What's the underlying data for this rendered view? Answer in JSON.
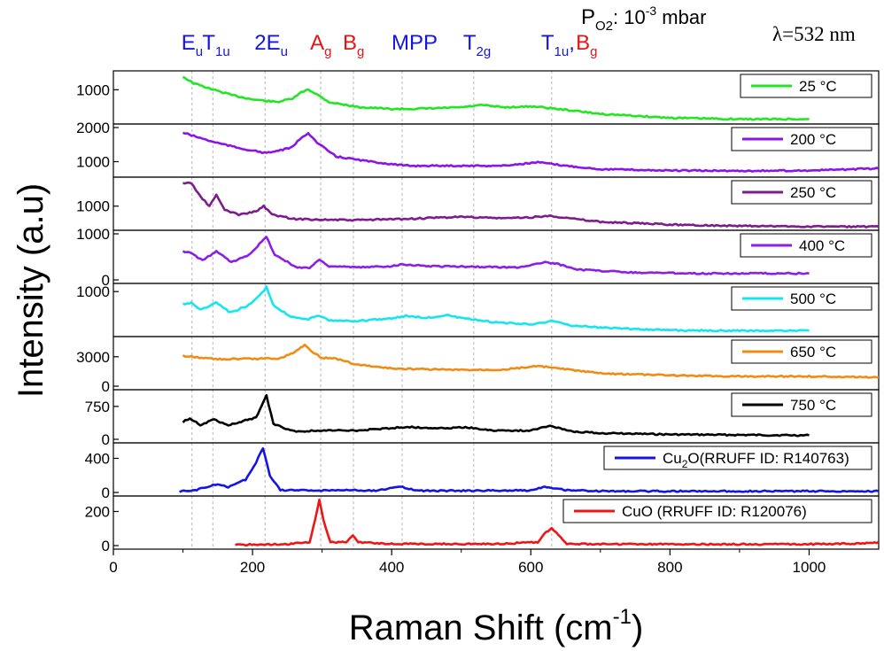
{
  "chart_data": {
    "type": "line",
    "xlabel": "Raman Shift (cm",
    "xlabel_sup": "-1",
    "xlabel_close": ")",
    "ylabel": "Intensity (a.u)",
    "xlim": [
      0,
      1100
    ],
    "x_ticks": [
      0,
      200,
      400,
      600,
      800,
      1000
    ],
    "x_tick_labels": [
      "0",
      "200",
      "400",
      "600",
      "800",
      "1000"
    ],
    "annotation": {
      "p_text": "P",
      "p_sub": "O2",
      "p_rest": ": 10",
      "p_exp": "-3",
      "p_unit": " mbar",
      "lambda_text": "λ=532 nm"
    },
    "peak_labels": [
      {
        "main": "E",
        "sub": "u",
        "x": 113,
        "color": "#1414e6"
      },
      {
        "main": "T",
        "sub": "1u",
        "x": 143,
        "color": "#1414e6"
      },
      {
        "main": "2E",
        "sub": "u",
        "x": 218,
        "color": "#1414e6"
      },
      {
        "main": "A",
        "sub": "g",
        "x": 298,
        "color": "#e61414"
      },
      {
        "main": "B",
        "sub": "g",
        "x": 345,
        "color": "#e61414"
      },
      {
        "main": "MPP",
        "sub": "",
        "x": 415,
        "color": "#1414e6"
      },
      {
        "main": "T",
        "sub": "2g",
        "x": 518,
        "color": "#1414e6"
      },
      {
        "main": "T",
        "sub": "1u",
        "x": 630,
        "color": "#1414e6"
      },
      {
        "main": "B",
        "sub": "g",
        "x": 680,
        "color": "#e61414"
      }
    ],
    "peak_label_separator": ",",
    "guide_lines_x": [
      113,
      143,
      218,
      298,
      345,
      415,
      518,
      630
    ],
    "series": [
      {
        "name": "25 °C",
        "color": "#22e622",
        "y_ticks": [
          1000
        ],
        "y_tick_labels": [
          "1000"
        ],
        "x_start": 100,
        "x_end": 1000,
        "points": [
          [
            100,
            1300
          ],
          [
            115,
            1150
          ],
          [
            140,
            1020
          ],
          [
            170,
            880
          ],
          [
            200,
            780
          ],
          [
            235,
            720
          ],
          [
            258,
            800
          ],
          [
            270,
            940
          ],
          [
            280,
            1010
          ],
          [
            292,
            900
          ],
          [
            310,
            720
          ],
          [
            350,
            610
          ],
          [
            400,
            560
          ],
          [
            450,
            570
          ],
          [
            500,
            600
          ],
          [
            530,
            650
          ],
          [
            560,
            600
          ],
          [
            605,
            620
          ],
          [
            640,
            560
          ],
          [
            700,
            450
          ],
          [
            800,
            360
          ],
          [
            900,
            330
          ],
          [
            1000,
            330
          ]
        ]
      },
      {
        "name": "200 °C",
        "color": "#8c14e6",
        "y_ticks": [
          1000,
          2000
        ],
        "y_tick_labels": [
          "1000",
          "2000"
        ],
        "x_start": 100,
        "x_end": 1100,
        "points": [
          [
            100,
            1850
          ],
          [
            140,
            1600
          ],
          [
            180,
            1400
          ],
          [
            220,
            1250
          ],
          [
            255,
            1400
          ],
          [
            268,
            1650
          ],
          [
            280,
            1850
          ],
          [
            293,
            1550
          ],
          [
            320,
            1150
          ],
          [
            370,
            1000
          ],
          [
            420,
            880
          ],
          [
            500,
            880
          ],
          [
            560,
            880
          ],
          [
            610,
            980
          ],
          [
            650,
            880
          ],
          [
            700,
            780
          ],
          [
            800,
            740
          ],
          [
            900,
            730
          ],
          [
            1000,
            740
          ],
          [
            1100,
            800
          ]
        ]
      },
      {
        "name": "250 °C",
        "color": "#7d1c8c",
        "y_ticks": [
          1000
        ],
        "y_tick_labels": [
          "1000"
        ],
        "x_start": 100,
        "x_end": 1100,
        "points": [
          [
            100,
            1950
          ],
          [
            112,
            1950
          ],
          [
            125,
            1400
          ],
          [
            138,
            1000
          ],
          [
            148,
            1450
          ],
          [
            160,
            850
          ],
          [
            180,
            650
          ],
          [
            205,
            780
          ],
          [
            216,
            1000
          ],
          [
            228,
            650
          ],
          [
            260,
            470
          ],
          [
            340,
            420
          ],
          [
            420,
            470
          ],
          [
            500,
            560
          ],
          [
            560,
            500
          ],
          [
            600,
            540
          ],
          [
            630,
            600
          ],
          [
            660,
            480
          ],
          [
            700,
            350
          ],
          [
            800,
            240
          ],
          [
            900,
            180
          ],
          [
            1000,
            160
          ],
          [
            1100,
            150
          ]
        ]
      },
      {
        "name": "400 °C",
        "color": "#8c1ee6",
        "y_ticks": [
          0,
          1000
        ],
        "y_tick_labels": [
          "0",
          "1000"
        ],
        "x_start": 100,
        "x_end": 1000,
        "points": [
          [
            100,
            620
          ],
          [
            112,
            580
          ],
          [
            128,
            420
          ],
          [
            148,
            620
          ],
          [
            170,
            380
          ],
          [
            195,
            550
          ],
          [
            210,
            780
          ],
          [
            220,
            930
          ],
          [
            232,
            550
          ],
          [
            262,
            280
          ],
          [
            282,
            260
          ],
          [
            296,
            440
          ],
          [
            310,
            300
          ],
          [
            350,
            270
          ],
          [
            400,
            300
          ],
          [
            415,
            340
          ],
          [
            450,
            300
          ],
          [
            500,
            290
          ],
          [
            580,
            270
          ],
          [
            620,
            380
          ],
          [
            640,
            340
          ],
          [
            670,
            220
          ],
          [
            750,
            160
          ],
          [
            850,
            140
          ],
          [
            1000,
            140
          ]
        ]
      },
      {
        "name": "500 °C",
        "color": "#14e6f0",
        "y_ticks": [
          1000
        ],
        "y_tick_labels": [
          "1000"
        ],
        "x_start": 100,
        "x_end": 1000,
        "points": [
          [
            100,
            730
          ],
          [
            112,
            760
          ],
          [
            125,
            600
          ],
          [
            148,
            760
          ],
          [
            168,
            540
          ],
          [
            195,
            710
          ],
          [
            210,
            900
          ],
          [
            220,
            1100
          ],
          [
            230,
            700
          ],
          [
            255,
            460
          ],
          [
            280,
            400
          ],
          [
            295,
            470
          ],
          [
            310,
            380
          ],
          [
            350,
            360
          ],
          [
            400,
            420
          ],
          [
            420,
            470
          ],
          [
            450,
            430
          ],
          [
            480,
            490
          ],
          [
            500,
            420
          ],
          [
            550,
            330
          ],
          [
            600,
            290
          ],
          [
            630,
            360
          ],
          [
            660,
            260
          ],
          [
            700,
            220
          ],
          [
            800,
            160
          ],
          [
            900,
            150
          ],
          [
            1000,
            150
          ]
        ]
      },
      {
        "name": "650 °C",
        "color": "#f08c14",
        "y_ticks": [
          0,
          3000
        ],
        "y_tick_labels": [
          "0",
          "3000"
        ],
        "x_start": 100,
        "x_end": 1100,
        "points": [
          [
            100,
            3100
          ],
          [
            150,
            2750
          ],
          [
            200,
            2800
          ],
          [
            240,
            2850
          ],
          [
            258,
            3400
          ],
          [
            275,
            4200
          ],
          [
            290,
            3300
          ],
          [
            300,
            2900
          ],
          [
            320,
            2800
          ],
          [
            350,
            2200
          ],
          [
            400,
            1800
          ],
          [
            500,
            1650
          ],
          [
            560,
            1700
          ],
          [
            610,
            2050
          ],
          [
            640,
            1800
          ],
          [
            700,
            1300
          ],
          [
            800,
            1100
          ],
          [
            900,
            1000
          ],
          [
            1000,
            1000
          ],
          [
            1100,
            900
          ]
        ]
      },
      {
        "name": "750 °C",
        "color": "#000000",
        "y_ticks": [
          0,
          750
        ],
        "y_tick_labels": [
          "0",
          "750"
        ],
        "x_start": 100,
        "x_end": 1000,
        "points": [
          [
            100,
            400
          ],
          [
            110,
            480
          ],
          [
            125,
            330
          ],
          [
            145,
            450
          ],
          [
            165,
            320
          ],
          [
            190,
            430
          ],
          [
            205,
            500
          ],
          [
            213,
            750
          ],
          [
            220,
            1000
          ],
          [
            230,
            350
          ],
          [
            260,
            180
          ],
          [
            300,
            200
          ],
          [
            350,
            200
          ],
          [
            420,
            280
          ],
          [
            480,
            250
          ],
          [
            500,
            280
          ],
          [
            550,
            200
          ],
          [
            600,
            200
          ],
          [
            628,
            310
          ],
          [
            660,
            180
          ],
          [
            700,
            140
          ],
          [
            800,
            110
          ],
          [
            900,
            100
          ],
          [
            1000,
            90
          ]
        ]
      },
      {
        "name": "Cu",
        "name_sub": "2",
        "name_rest": "O(RRUFF ID: R140763)",
        "color": "#1414e6",
        "y_ticks": [
          0,
          400
        ],
        "y_tick_labels": [
          "0",
          "400"
        ],
        "x_start": 95,
        "x_end": 1100,
        "points": [
          [
            95,
            10
          ],
          [
            120,
            30
          ],
          [
            140,
            80
          ],
          [
            150,
            100
          ],
          [
            165,
            60
          ],
          [
            190,
            150
          ],
          [
            205,
            350
          ],
          [
            215,
            520
          ],
          [
            225,
            200
          ],
          [
            240,
            30
          ],
          [
            290,
            20
          ],
          [
            320,
            30
          ],
          [
            380,
            20
          ],
          [
            410,
            70
          ],
          [
            440,
            20
          ],
          [
            500,
            20
          ],
          [
            600,
            25
          ],
          [
            620,
            70
          ],
          [
            650,
            30
          ],
          [
            700,
            15
          ],
          [
            800,
            15
          ],
          [
            900,
            15
          ],
          [
            1000,
            15
          ],
          [
            1100,
            15
          ]
        ]
      },
      {
        "name": "CuO (RRUFF ID: R120076)",
        "color": "#f01414",
        "y_ticks": [
          0,
          200
        ],
        "y_tick_labels": [
          "0",
          "200"
        ],
        "x_start": 175,
        "x_end": 1100,
        "points": [
          [
            175,
            5
          ],
          [
            250,
            8
          ],
          [
            282,
            20
          ],
          [
            290,
            150
          ],
          [
            296,
            265
          ],
          [
            302,
            150
          ],
          [
            312,
            20
          ],
          [
            335,
            20
          ],
          [
            344,
            60
          ],
          [
            352,
            20
          ],
          [
            400,
            10
          ],
          [
            550,
            10
          ],
          [
            610,
            20
          ],
          [
            622,
            80
          ],
          [
            630,
            100
          ],
          [
            640,
            60
          ],
          [
            652,
            10
          ],
          [
            700,
            8
          ],
          [
            900,
            8
          ],
          [
            1000,
            8
          ],
          [
            1080,
            12
          ],
          [
            1100,
            20
          ]
        ]
      }
    ]
  }
}
